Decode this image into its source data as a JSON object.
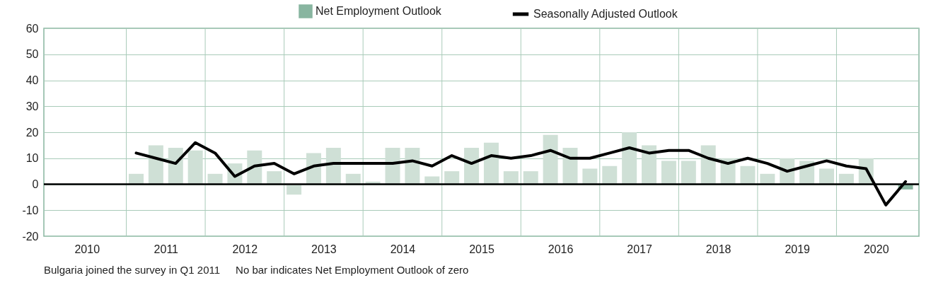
{
  "chart_data": {
    "type": "bar",
    "x": [
      2011.125,
      2011.375,
      2011.625,
      2011.875,
      2012.125,
      2012.375,
      2012.625,
      2012.875,
      2013.125,
      2013.375,
      2013.625,
      2013.875,
      2014.125,
      2014.375,
      2014.625,
      2014.875,
      2015.125,
      2015.375,
      2015.625,
      2015.875,
      2016.125,
      2016.375,
      2016.625,
      2016.875,
      2017.125,
      2017.375,
      2017.625,
      2017.875,
      2018.125,
      2018.375,
      2018.625,
      2018.875,
      2019.125,
      2019.375,
      2019.625,
      2019.875,
      2020.125,
      2020.375,
      2020.625,
      2020.875
    ],
    "series": [
      {
        "name": "Net Employment Outlook",
        "color": "#88b5a0",
        "colors": [
          "#cfe0d6",
          "#cfe0d6",
          "#cfe0d6",
          "#cfe0d6",
          "#cfe0d6",
          "#cfe0d6",
          "#cfe0d6",
          "#cfe0d6",
          "#cfe0d6",
          "#cfe0d6",
          "#cfe0d6",
          "#cfe0d6",
          "#cfe0d6",
          "#cfe0d6",
          "#cfe0d6",
          "#cfe0d6",
          "#cfe0d6",
          "#cfe0d6",
          "#cfe0d6",
          "#cfe0d6",
          "#cfe0d6",
          "#cfe0d6",
          "#cfe0d6",
          "#cfe0d6",
          "#cfe0d6",
          "#cfe0d6",
          "#cfe0d6",
          "#cfe0d6",
          "#cfe0d6",
          "#cfe0d6",
          "#cfe0d6",
          "#cfe0d6",
          "#cfe0d6",
          "#cfe0d6",
          "#cfe0d6",
          "#cfe0d6",
          "#cfe0d6",
          "#cfe0d6",
          "#cfe0d6",
          "#88b5a0"
        ],
        "values": [
          4,
          15,
          14,
          13,
          4,
          8,
          13,
          5,
          -4,
          12,
          14,
          4,
          1,
          14,
          14,
          3,
          5,
          14,
          16,
          5,
          5,
          19,
          14,
          6,
          7,
          20,
          15,
          9,
          9,
          15,
          10,
          7,
          4,
          10,
          9,
          6,
          4,
          10,
          0,
          -2
        ]
      },
      {
        "name": "Seasonally Adjusted Outlook",
        "type": "line",
        "color": "#000000",
        "values": [
          12,
          10,
          8,
          16,
          12,
          3,
          7,
          8,
          4,
          7,
          8,
          8,
          8,
          8,
          9,
          7,
          11,
          8,
          11,
          10,
          11,
          13,
          10,
          10,
          12,
          14,
          12,
          13,
          13,
          10,
          8,
          10,
          8,
          5,
          7,
          9,
          7,
          6,
          -8,
          1
        ]
      }
    ],
    "xlim": [
      2010,
      2021
    ],
    "xticks": [
      {
        "value": 2010.5,
        "label": "2010"
      },
      {
        "value": 2011,
        "label": null
      },
      {
        "value": 2011.5,
        "label": "2011"
      },
      {
        "value": 2012,
        "label": null
      },
      {
        "value": 2012.5,
        "label": "2012"
      },
      {
        "value": 2013,
        "label": null
      },
      {
        "value": 2013.5,
        "label": "2013"
      },
      {
        "value": 2014,
        "label": null
      },
      {
        "value": 2014.5,
        "label": "2014"
      },
      {
        "value": 2015,
        "label": null
      },
      {
        "value": 2015.5,
        "label": "2015"
      },
      {
        "value": 2016,
        "label": null
      },
      {
        "value": 2016.5,
        "label": "2016"
      },
      {
        "value": 2017,
        "label": null
      },
      {
        "value": 2017.5,
        "label": "2017"
      },
      {
        "value": 2018,
        "label": null
      },
      {
        "value": 2018.5,
        "label": "2018"
      },
      {
        "value": 2019,
        "label": null
      },
      {
        "value": 2019.5,
        "label": "2019"
      },
      {
        "value": 2020,
        "label": null
      },
      {
        "value": 2020.5,
        "label": "2020"
      }
    ],
    "ylim": [
      -20,
      60
    ],
    "yticks": [
      -20,
      -10,
      0,
      10,
      20,
      30,
      40,
      50,
      60
    ],
    "grid": true,
    "legend": "top",
    "ref_lines": [
      {
        "axis": "y",
        "value": 0,
        "color": "#000000"
      }
    ],
    "annotations": [
      "Bulgaria joined the survey in Q1 2011",
      "No bar indicates Net Employment Outlook of zero"
    ]
  }
}
